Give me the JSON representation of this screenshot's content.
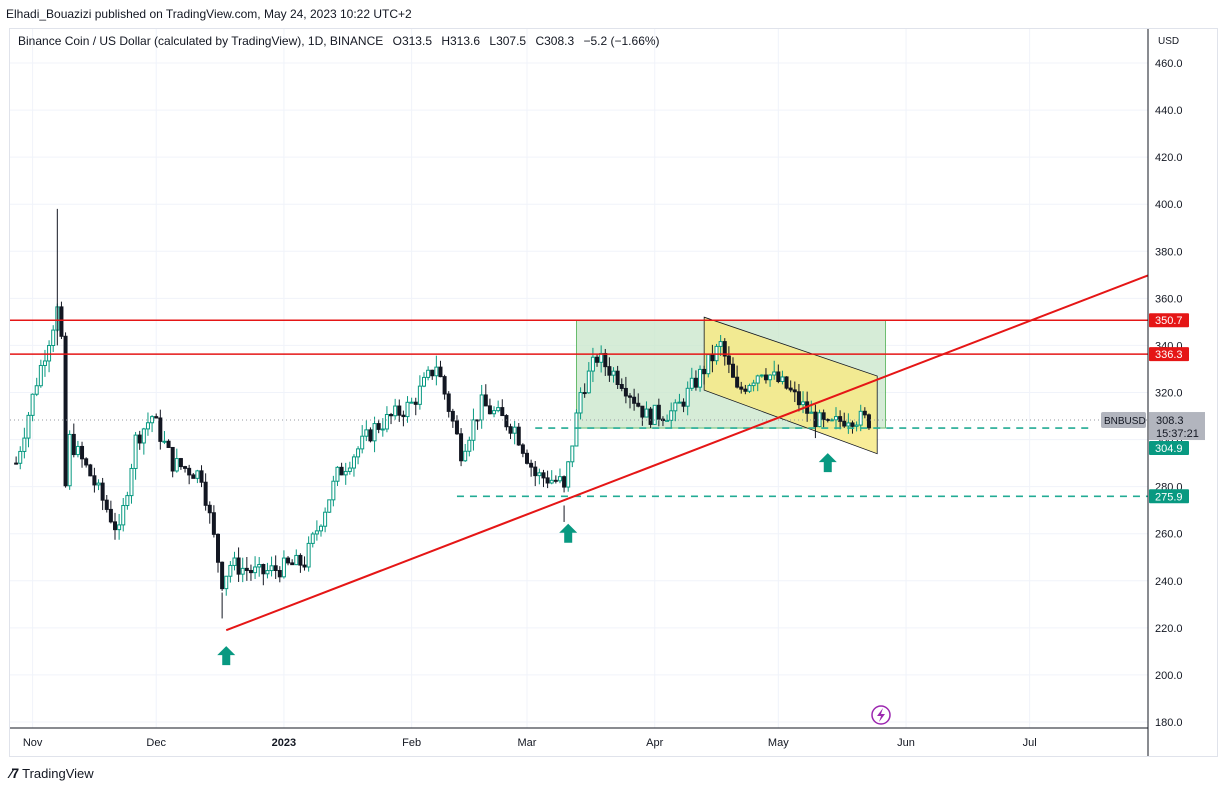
{
  "header": {
    "author": "Elhadi_Bouazizi",
    "published_text": "published on TradingView.com, May 24, 2023 10:22 UTC+2"
  },
  "legend": {
    "title": "Binance Coin / US Dollar (calculated by TradingView), 1D, BINANCE",
    "open": "O313.5",
    "high": "H313.6",
    "low": "L307.5",
    "close": "C308.3",
    "change": "−5.2 (−1.66%)"
  },
  "axis": {
    "currency": "USD",
    "y_ticks": [
      "460.0",
      "440.0",
      "420.0",
      "400.0",
      "380.0",
      "360.0",
      "340.0",
      "320.0",
      "300.0",
      "280.0",
      "260.0",
      "240.0",
      "220.0",
      "200.0",
      "180.0"
    ],
    "x_ticks": [
      "Nov",
      "Dec",
      "2023",
      "Feb",
      "Mar",
      "Apr",
      "May",
      "Jun",
      "Jul"
    ]
  },
  "price_labels": {
    "resistance_high": "350.7",
    "resistance_low": "336.3",
    "symbol": "BNBUSD",
    "last_price": "308.3",
    "countdown": "15:37:21",
    "support_high": "304.9",
    "support_low": "275.9"
  },
  "footer": {
    "brand": "TradingView"
  },
  "colors": {
    "up": "#089981",
    "down": "#131722",
    "trendline": "#e51616",
    "support": "#22ab94",
    "range_box": "#c8e6c9",
    "channel": "#f7ea86",
    "arrow": "#089981"
  },
  "chart_data": {
    "type": "candlestick",
    "symbol": "BNBUSD",
    "timeframe": "1D",
    "ylim": [
      180,
      460
    ],
    "horizontal_levels": [
      350.7,
      336.3,
      304.9,
      275.9
    ],
    "trendline": {
      "from": {
        "date": "2022-12-18",
        "price": 219
      },
      "to": {
        "date": "2023-06-23",
        "price": 345
      }
    },
    "price_path": [
      {
        "d": "2022-10-28",
        "p": 290
      },
      {
        "d": "2022-11-02",
        "p": 325
      },
      {
        "d": "2022-11-07",
        "p": 355
      },
      {
        "d": "2022-11-08",
        "p": 340
      },
      {
        "d": "2022-11-09",
        "p": 280
      },
      {
        "d": "2022-11-10",
        "p": 300
      },
      {
        "d": "2022-11-15",
        "p": 285
      },
      {
        "d": "2022-11-22",
        "p": 260
      },
      {
        "d": "2022-11-26",
        "p": 300
      },
      {
        "d": "2022-11-30",
        "p": 310
      },
      {
        "d": "2022-12-05",
        "p": 290
      },
      {
        "d": "2022-12-12",
        "p": 285
      },
      {
        "d": "2022-12-17",
        "p": 240
      },
      {
        "d": "2022-12-19",
        "p": 247
      },
      {
        "d": "2022-12-26",
        "p": 243
      },
      {
        "d": "2023-01-06",
        "p": 248
      },
      {
        "d": "2023-01-14",
        "p": 285
      },
      {
        "d": "2023-01-23",
        "p": 305
      },
      {
        "d": "2023-02-01",
        "p": 315
      },
      {
        "d": "2023-02-07",
        "p": 332
      },
      {
        "d": "2023-02-13",
        "p": 295
      },
      {
        "d": "2023-02-18",
        "p": 315
      },
      {
        "d": "2023-02-26",
        "p": 305
      },
      {
        "d": "2023-03-03",
        "p": 285
      },
      {
        "d": "2023-03-09",
        "p": 282
      },
      {
        "d": "2023-03-10",
        "p": 278
      },
      {
        "d": "2023-03-14",
        "p": 320
      },
      {
        "d": "2023-03-18",
        "p": 335
      },
      {
        "d": "2023-03-24",
        "p": 325
      },
      {
        "d": "2023-03-30",
        "p": 310
      },
      {
        "d": "2023-04-06",
        "p": 312
      },
      {
        "d": "2023-04-13",
        "p": 330
      },
      {
        "d": "2023-04-17",
        "p": 340
      },
      {
        "d": "2023-04-21",
        "p": 320
      },
      {
        "d": "2023-04-27",
        "p": 330
      },
      {
        "d": "2023-05-03",
        "p": 322
      },
      {
        "d": "2023-05-09",
        "p": 310
      },
      {
        "d": "2023-05-13",
        "p": 305
      },
      {
        "d": "2023-05-18",
        "p": 310
      },
      {
        "d": "2023-05-23",
        "p": 308
      }
    ]
  }
}
